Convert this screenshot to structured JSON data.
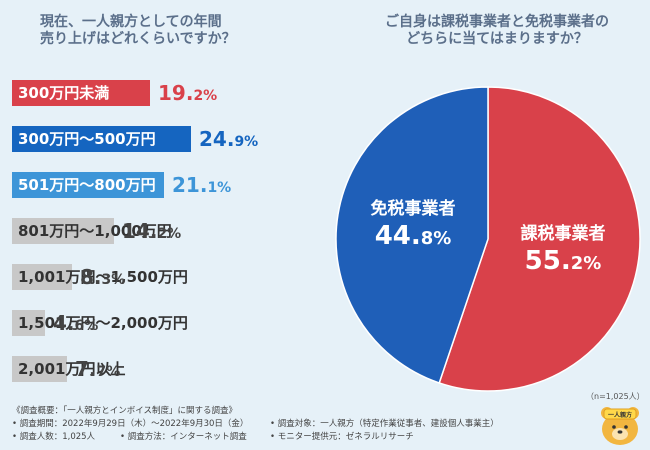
{
  "left_question": "現在、一人親方としての年間\n売り上げはどれくらいですか？",
  "right_question": "ご自身は課税事業者と免税事業者の\nどちらに当てはまりますか？",
  "chart_data": [
    {
      "type": "bar",
      "title": "現在、一人親方としての年間売り上げはどれくらいですか？",
      "categories": [
        "300万円未満",
        "300万円〜500万円",
        "501万円〜800万円",
        "801万円〜1,000万円",
        "1,001万円〜1,500万円",
        "1,501万円〜2,000万円",
        "2,001万円以上"
      ],
      "values": [
        19.2,
        24.9,
        21.1,
        14.2,
        8.3,
        4.6,
        7.7
      ],
      "value_labels": [
        {
          "main": "19.",
          "small": "2%"
        },
        {
          "main": "24.",
          "small": "9%"
        },
        {
          "main": "21.",
          "small": "1%"
        },
        {
          "main": "14.",
          "small": "2%"
        },
        {
          "main": "8.",
          "small": "3%"
        },
        {
          "main": "4.",
          "small": "6%"
        },
        {
          "main": "7.",
          "small": "7%"
        }
      ],
      "unit": "%",
      "colors": [
        "#d9414a",
        "#1565c0",
        "#3d95d8",
        "#c8c8c8",
        "#c8c8c8",
        "#c8c8c8",
        "#c8c8c8"
      ],
      "label_colors": [
        "#ffffff",
        "#ffffff",
        "#ffffff",
        "#333333",
        "#333333",
        "#333333",
        "#333333"
      ],
      "pct_colors": [
        "#d9414a",
        "#1565c0",
        "#3d95d8",
        "#444444",
        "#444444",
        "#444444",
        "#444444"
      ]
    },
    {
      "type": "pie",
      "title": "ご自身は課税事業者と免税事業者のどちらに当てはまりますか？",
      "slices": [
        {
          "name": "課税事業者",
          "value": 55.2,
          "label_main": "55.",
          "label_small": "2%",
          "color": "#d9414a"
        },
        {
          "name": "免税事業者",
          "value": 44.8,
          "label_main": "44.",
          "label_small": "8%",
          "color": "#1f5fb8"
        }
      ],
      "note": "（n=1,025人）"
    }
  ],
  "footer": {
    "title": "《調査概要：「一人親方とインボイス制度」に関する調査》",
    "items": [
      "• 調査期間：2022年9月29日（木）〜2022年9月30日（金）",
      "• 調査方法：インターネット調査",
      "• 調査人数：1,025人",
      "• 調査対象：一人親方（特定作業従事者、建設個人事業主）",
      "• モニター提供元：ゼネラルリサーチ"
    ]
  },
  "mascot_badge": "一人親方",
  "colors": {
    "background": "#e6f1f8",
    "title": "#5b6f8a",
    "red": "#d9414a",
    "blue": "#1565c0",
    "light_blue": "#3d95d8",
    "gray": "#c8c8c8"
  }
}
